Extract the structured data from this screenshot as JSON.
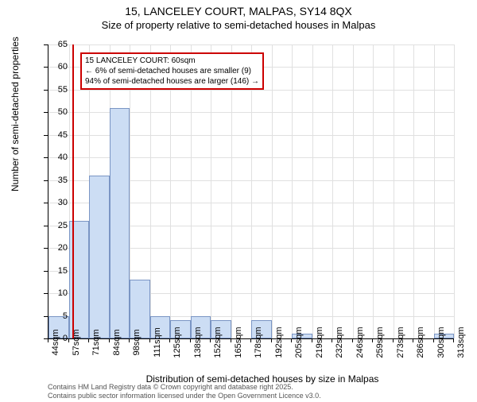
{
  "title": "15, LANCELEY COURT, MALPAS, SY14 8QX",
  "subtitle": "Size of property relative to semi-detached houses in Malpas",
  "y_axis_label": "Number of semi-detached properties",
  "x_axis_label": "Distribution of semi-detached houses by size in Malpas",
  "footer_line1": "Contains HM Land Registry data © Crown copyright and database right 2025.",
  "footer_line2": "Contains public sector information licensed under the Open Government Licence v3.0.",
  "chart": {
    "type": "histogram",
    "ylim": [
      0,
      65
    ],
    "ytick_step": 5,
    "background_color": "#ffffff",
    "grid_color": "#e0e0e0",
    "bar_fill": "#ccddf4",
    "bar_border": "#7a95c4",
    "marker_color": "#cc0000",
    "marker_position": 60,
    "x_ticks": [
      "44sqm",
      "57sqm",
      "71sqm",
      "84sqm",
      "98sqm",
      "111sqm",
      "125sqm",
      "138sqm",
      "152sqm",
      "165sqm",
      "178sqm",
      "192sqm",
      "205sqm",
      "219sqm",
      "232sqm",
      "246sqm",
      "259sqm",
      "273sqm",
      "286sqm",
      "300sqm",
      "313sqm"
    ],
    "bars": [
      {
        "height": 5
      },
      {
        "height": 26
      },
      {
        "height": 36
      },
      {
        "height": 51
      },
      {
        "height": 13
      },
      {
        "height": 5
      },
      {
        "height": 4
      },
      {
        "height": 5
      },
      {
        "height": 4
      },
      {
        "height": 0
      },
      {
        "height": 4
      },
      {
        "height": 0
      },
      {
        "height": 1
      },
      {
        "height": 0
      },
      {
        "height": 0
      },
      {
        "height": 0
      },
      {
        "height": 0
      },
      {
        "height": 0
      },
      {
        "height": 0
      },
      {
        "height": 1
      }
    ],
    "annotation": {
      "line1": "15 LANCELEY COURT: 60sqm",
      "line2": "← 6% of semi-detached houses are smaller (9)",
      "line3": "94% of semi-detached houses are larger (146) →"
    }
  }
}
